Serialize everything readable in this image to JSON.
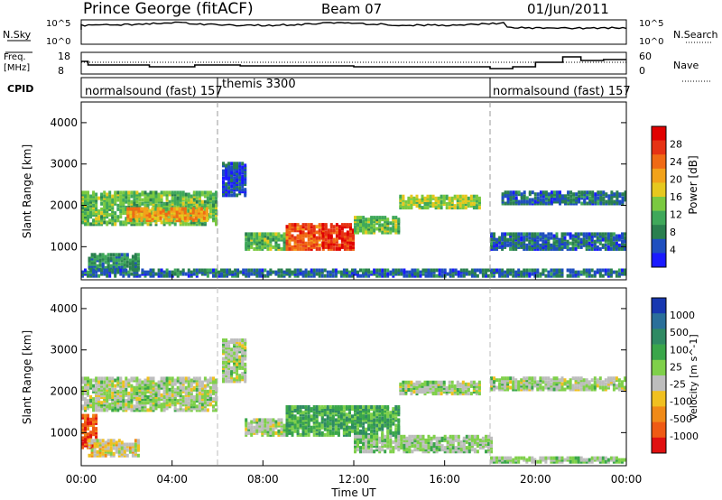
{
  "header": {
    "station": "Prince George (fitACF)",
    "beam": "Beam 07",
    "date": "01/Jun/2011"
  },
  "top_panels": {
    "nsky_label": "N.Sky",
    "nsky_ticks": [
      "10^5",
      "10^0"
    ],
    "nsearch_label": "N.Search",
    "nsearch_ticks": [
      "10^5",
      "10^0"
    ],
    "freq_label": "Freq.",
    "freq_unit": "[MHz]",
    "freq_ticks": [
      "18",
      "8"
    ],
    "nave_label": "Nave",
    "nave_ticks": [
      "60",
      "0"
    ],
    "cpid_label": "CPID",
    "cpid_segments": [
      {
        "label": "normalsound (fast) 157",
        "start_hour": 0
      },
      {
        "label": "themis 3300",
        "start_hour": 6
      },
      {
        "label": "normalsound (fast) 157",
        "start_hour": 18
      }
    ]
  },
  "axes": {
    "ylabel": "Slant Range [km]",
    "yticks": [
      "4000",
      "3000",
      "2000",
      "1000"
    ],
    "xlabel": "Time UT",
    "xticks": [
      "00:00",
      "04:00",
      "08:00",
      "12:00",
      "16:00",
      "20:00",
      "00:00"
    ]
  },
  "colorbars": {
    "power": {
      "label": "Power [dB]",
      "ticks": [
        "28",
        "24",
        "20",
        "16",
        "12",
        "8",
        "4"
      ],
      "colors": [
        "#1a1aff",
        "#1f4fbf",
        "#2a7f4f",
        "#3fa85a",
        "#7ac940",
        "#e6c81e",
        "#f2a21a",
        "#f06a14",
        "#e63214",
        "#e00000"
      ]
    },
    "velocity": {
      "label": "Velocity [m s^-1]",
      "ticks": [
        "1000",
        "500",
        "100",
        "25",
        "-25",
        "-100",
        "-500",
        "-1000"
      ],
      "colors": [
        "#1838b0",
        "#2a6f9a",
        "#2f8a63",
        "#3aa64a",
        "#7fd04a",
        "#bdbdbd",
        "#f0c020",
        "#f08a18",
        "#ef5a14",
        "#e01010"
      ]
    }
  },
  "chart_data": [
    {
      "type": "heatmap",
      "name": "power",
      "x_range_hours": [
        0,
        24
      ],
      "ylim": [
        200,
        4500
      ],
      "colorbar_range_db": [
        0,
        30
      ],
      "bands": [
        {
          "t0": 0.0,
          "t1": 6.0,
          "r0": 1500,
          "r1": 2300,
          "value": 12
        },
        {
          "t0": 0.3,
          "t1": 2.5,
          "r0": 400,
          "r1": 800,
          "value": 8
        },
        {
          "t0": 2.0,
          "t1": 5.5,
          "r0": 1600,
          "r1": 1900,
          "value": 20
        },
        {
          "t0": 6.2,
          "t1": 7.2,
          "r0": 2200,
          "r1": 3000,
          "value": 4
        },
        {
          "t0": 7.2,
          "t1": 9.0,
          "r0": 900,
          "r1": 1300,
          "value": 12
        },
        {
          "t0": 9.0,
          "t1": 10.6,
          "r0": 900,
          "r1": 1500,
          "value": 24
        },
        {
          "t0": 10.6,
          "t1": 12.0,
          "r0": 900,
          "r1": 1500,
          "value": 26
        },
        {
          "t0": 12.0,
          "t1": 14.0,
          "r0": 1300,
          "r1": 1700,
          "value": 12
        },
        {
          "t0": 14.0,
          "t1": 17.5,
          "r0": 1900,
          "r1": 2200,
          "value": 14
        },
        {
          "t0": 18.0,
          "t1": 24.0,
          "r0": 900,
          "r1": 1300,
          "value": 6
        },
        {
          "t0": 18.5,
          "t1": 24.0,
          "r0": 2000,
          "r1": 2300,
          "value": 6
        },
        {
          "t0": 0.0,
          "t1": 24.0,
          "r0": 250,
          "r1": 400,
          "value": 6
        }
      ]
    },
    {
      "type": "heatmap",
      "name": "velocity",
      "x_range_hours": [
        0,
        24
      ],
      "ylim": [
        200,
        4500
      ],
      "colorbar_range_ms": [
        -1000,
        1000
      ],
      "bands": [
        {
          "t0": 0.0,
          "t1": 6.0,
          "r0": 1500,
          "r1": 2300,
          "value": 0
        },
        {
          "t0": 0.0,
          "t1": 0.7,
          "r0": 600,
          "r1": 1400,
          "value": -700
        },
        {
          "t0": 0.3,
          "t1": 2.5,
          "r0": 400,
          "r1": 800,
          "value": -200
        },
        {
          "t0": 6.2,
          "t1": 7.2,
          "r0": 2200,
          "r1": 3200,
          "value": 0
        },
        {
          "t0": 7.2,
          "t1": 9.0,
          "r0": 900,
          "r1": 1300,
          "value": 0
        },
        {
          "t0": 9.0,
          "t1": 14.0,
          "r0": 900,
          "r1": 1600,
          "value": 300
        },
        {
          "t0": 12.0,
          "t1": 18.0,
          "r0": 500,
          "r1": 900,
          "value": 60
        },
        {
          "t0": 14.0,
          "t1": 17.5,
          "r0": 1900,
          "r1": 2200,
          "value": 0
        },
        {
          "t0": 18.0,
          "t1": 24.0,
          "r0": 2000,
          "r1": 2300,
          "value": 0
        },
        {
          "t0": 18.0,
          "t1": 24.0,
          "r0": 250,
          "r1": 350,
          "value": 60
        }
      ]
    }
  ]
}
